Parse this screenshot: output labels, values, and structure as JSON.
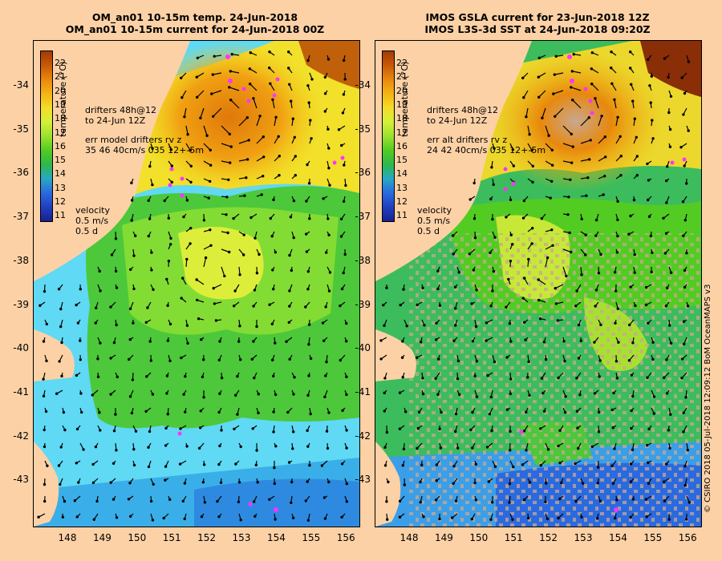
{
  "left_panel": {
    "title_line1": "OM_an01 10-15m temp. 24-Jun-2018",
    "title_line2": "OM_an01 10-15m current for 24-Jun-2018 00Z",
    "drifters_line1": "drifters 48h@12",
    "drifters_line2": "to 24-Jun 12Z",
    "err_line1": "err model drifters rv z",
    "err_line2": "35 46 40cm/s 035 12+-5m",
    "velocity_label": "velocity",
    "velocity_scale": "0.5 m/s",
    "velocity_time": "0.5 d"
  },
  "right_panel": {
    "title_line1": "IMOS GSLA current for 23-Jun-2018 12Z",
    "title_line2": "IMOS L3S-3d SST at 24-Jun-2018 09:20Z",
    "drifters_line1": "drifters 48h@12",
    "drifters_line2": "to 24-Jun 12Z",
    "err_line1": "err alt drifters rv z",
    "err_line2": "24 42 40cm/s 035 12+-5m",
    "velocity_label": "velocity",
    "velocity_scale": "0.5 m/s",
    "velocity_time": "0.5 d"
  },
  "colorbar": {
    "title": "temperature (°C)",
    "ticks": [
      "22",
      "21",
      "20",
      "19",
      "18",
      "17",
      "16",
      "15",
      "14",
      "13",
      "12",
      "11"
    ],
    "colors": [
      "#a23a06",
      "#c85a08",
      "#e8880c",
      "#f4b414",
      "#f4dc28",
      "#d4f038",
      "#9ae230",
      "#52cc22",
      "#2eb84a",
      "#28a8c4",
      "#2a6ae0",
      "#2040c0",
      "#182090"
    ]
  },
  "y_axis_labels": [
    "-34",
    "-35",
    "-36",
    "-37",
    "-38",
    "-39",
    "-40",
    "-41",
    "-42",
    "-43"
  ],
  "x_axis_labels": [
    "148",
    "149",
    "150",
    "151",
    "152",
    "153",
    "154",
    "155",
    "156"
  ],
  "credit": "© CSIRO 2018  05-Jul-2018 12:09:12 BoM OceanMAPS v3"
}
